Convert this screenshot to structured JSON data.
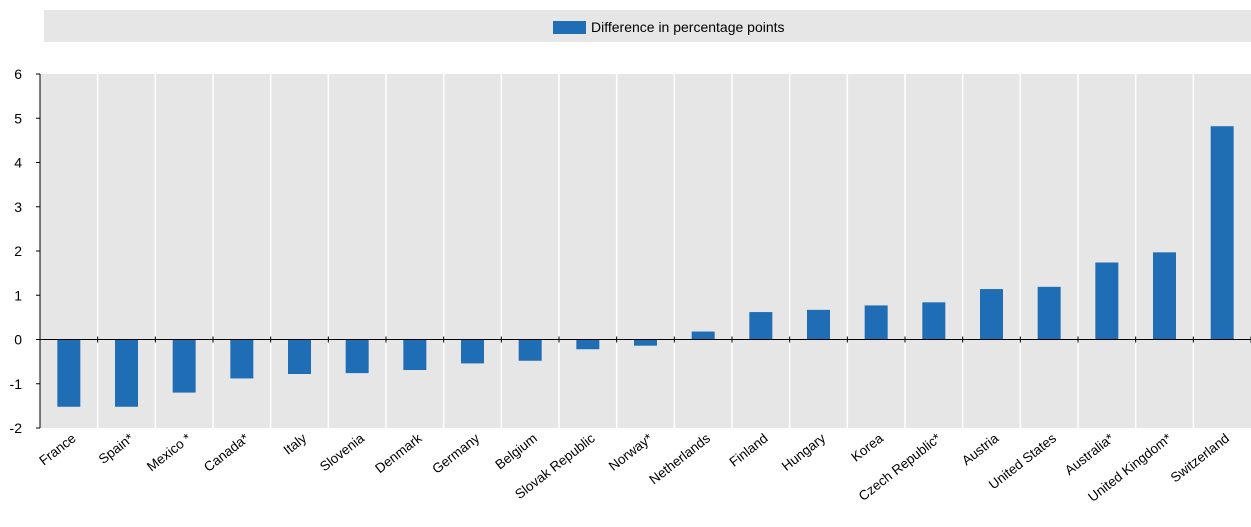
{
  "colors": {
    "bar": "#1f6eb5",
    "plot_bg": "#e6e6e6",
    "legend_bg": "#e6e6e6",
    "separator": "#ffffff",
    "axis": "#000000"
  },
  "chart_data": {
    "type": "bar",
    "legend": {
      "placement": "top-center",
      "entries": [
        "Difference in percentage points"
      ]
    },
    "grid": false,
    "ylim": [
      -2,
      6
    ],
    "yticks": [
      -2,
      -1,
      0,
      1,
      2,
      3,
      4,
      5,
      6
    ],
    "ytick_labels": [
      "-2",
      "-1",
      "0",
      "1",
      "2",
      "3",
      "4",
      "5",
      "6"
    ],
    "categories": [
      "France",
      "Spain*",
      "Mexico *",
      "Canada*",
      "Italy",
      "Slovenia",
      "Denmark",
      "Germany",
      "Belgium",
      "Slovak Republic",
      "Norway*",
      "Netherlands",
      "Finland",
      "Hungary",
      "Korea",
      "Czech Republic*",
      "Austria",
      "United States",
      "Australia*",
      "United Kingdom*",
      "Switzerland"
    ],
    "series": [
      {
        "name": "Difference in percentage points",
        "values": [
          -1.52,
          -1.52,
          -1.2,
          -0.88,
          -0.78,
          -0.76,
          -0.69,
          -0.54,
          -0.48,
          -0.22,
          -0.14,
          0.18,
          0.62,
          0.67,
          0.77,
          0.84,
          1.14,
          1.19,
          1.74,
          1.97,
          4.82
        ]
      }
    ]
  }
}
